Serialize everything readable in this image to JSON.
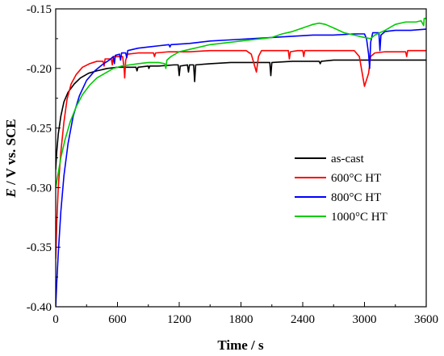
{
  "chart_data": {
    "type": "line",
    "xlabel": "Time / s",
    "ylabel_italic": "E",
    "ylabel_rest": " / V vs. SCE",
    "xlim": [
      0,
      3600
    ],
    "ylim": [
      -0.4,
      -0.15
    ],
    "xticks": [
      0,
      600,
      1200,
      1800,
      2400,
      3000,
      3600
    ],
    "xtick_labels": [
      "0",
      "600",
      "1200",
      "1800",
      "2400",
      "3000",
      "3600"
    ],
    "yticks": [
      -0.4,
      -0.35,
      -0.3,
      -0.25,
      -0.2,
      -0.15
    ],
    "ytick_labels": [
      "-0.40",
      "-0.35",
      "-0.30",
      "-0.25",
      "-0.20",
      "-0.15"
    ],
    "grid": false,
    "legend_position": "center-right",
    "series": [
      {
        "name": "as-cast",
        "color": "#000000",
        "points": [
          [
            0,
            -0.285
          ],
          [
            10,
            -0.27
          ],
          [
            25,
            -0.255
          ],
          [
            50,
            -0.24
          ],
          [
            80,
            -0.228
          ],
          [
            120,
            -0.22
          ],
          [
            180,
            -0.213
          ],
          [
            240,
            -0.208
          ],
          [
            320,
            -0.204
          ],
          [
            400,
            -0.202
          ],
          [
            500,
            -0.2
          ],
          [
            600,
            -0.199
          ],
          [
            700,
            -0.199
          ],
          [
            780,
            -0.199
          ],
          [
            790,
            -0.202
          ],
          [
            800,
            -0.199
          ],
          [
            900,
            -0.198
          ],
          [
            905,
            -0.2
          ],
          [
            915,
            -0.198
          ],
          [
            1000,
            -0.198
          ],
          [
            1150,
            -0.197
          ],
          [
            1190,
            -0.197
          ],
          [
            1200,
            -0.206
          ],
          [
            1210,
            -0.198
          ],
          [
            1280,
            -0.197
          ],
          [
            1290,
            -0.203
          ],
          [
            1300,
            -0.197
          ],
          [
            1340,
            -0.197
          ],
          [
            1350,
            -0.211
          ],
          [
            1360,
            -0.197
          ],
          [
            1500,
            -0.196
          ],
          [
            1700,
            -0.195
          ],
          [
            1900,
            -0.195
          ],
          [
            2080,
            -0.195
          ],
          [
            2090,
            -0.206
          ],
          [
            2100,
            -0.195
          ],
          [
            2300,
            -0.194
          ],
          [
            2560,
            -0.194
          ],
          [
            2570,
            -0.196
          ],
          [
            2580,
            -0.194
          ],
          [
            2700,
            -0.193
          ],
          [
            3000,
            -0.193
          ],
          [
            3300,
            -0.193
          ],
          [
            3600,
            -0.193
          ]
        ]
      },
      {
        "name": "600°C HT",
        "color": "#ff0000",
        "points": [
          [
            0,
            -0.36
          ],
          [
            10,
            -0.33
          ],
          [
            25,
            -0.3
          ],
          [
            50,
            -0.27
          ],
          [
            80,
            -0.245
          ],
          [
            110,
            -0.226
          ],
          [
            150,
            -0.213
          ],
          [
            200,
            -0.205
          ],
          [
            260,
            -0.199
          ],
          [
            330,
            -0.196
          ],
          [
            400,
            -0.194
          ],
          [
            460,
            -0.194
          ],
          [
            470,
            -0.198
          ],
          [
            480,
            -0.192
          ],
          [
            540,
            -0.192
          ],
          [
            550,
            -0.197
          ],
          [
            560,
            -0.19
          ],
          [
            600,
            -0.19
          ],
          [
            650,
            -0.19
          ],
          [
            665,
            -0.2
          ],
          [
            670,
            -0.208
          ],
          [
            680,
            -0.193
          ],
          [
            700,
            -0.188
          ],
          [
            800,
            -0.187
          ],
          [
            900,
            -0.187
          ],
          [
            950,
            -0.187
          ],
          [
            960,
            -0.19
          ],
          [
            970,
            -0.187
          ],
          [
            1100,
            -0.186
          ],
          [
            1300,
            -0.186
          ],
          [
            1500,
            -0.185
          ],
          [
            1700,
            -0.185
          ],
          [
            1850,
            -0.185
          ],
          [
            1900,
            -0.188
          ],
          [
            1930,
            -0.197
          ],
          [
            1950,
            -0.203
          ],
          [
            1970,
            -0.19
          ],
          [
            2000,
            -0.185
          ],
          [
            2200,
            -0.185
          ],
          [
            2260,
            -0.185
          ],
          [
            2270,
            -0.192
          ],
          [
            2280,
            -0.186
          ],
          [
            2350,
            -0.185
          ],
          [
            2400,
            -0.185
          ],
          [
            2410,
            -0.19
          ],
          [
            2420,
            -0.185
          ],
          [
            2600,
            -0.185
          ],
          [
            2700,
            -0.185
          ],
          [
            2900,
            -0.185
          ],
          [
            2950,
            -0.19
          ],
          [
            2980,
            -0.205
          ],
          [
            3000,
            -0.215
          ],
          [
            3040,
            -0.204
          ],
          [
            3060,
            -0.19
          ],
          [
            3100,
            -0.187
          ],
          [
            3200,
            -0.186
          ],
          [
            3300,
            -0.186
          ],
          [
            3400,
            -0.186
          ],
          [
            3410,
            -0.19
          ],
          [
            3420,
            -0.185
          ],
          [
            3500,
            -0.185
          ],
          [
            3600,
            -0.185
          ]
        ]
      },
      {
        "name": "800°C HT",
        "color": "#0000ff",
        "points": [
          [
            0,
            -0.4
          ],
          [
            10,
            -0.38
          ],
          [
            25,
            -0.355
          ],
          [
            50,
            -0.32
          ],
          [
            80,
            -0.29
          ],
          [
            120,
            -0.263
          ],
          [
            170,
            -0.24
          ],
          [
            230,
            -0.223
          ],
          [
            300,
            -0.21
          ],
          [
            380,
            -0.202
          ],
          [
            450,
            -0.197
          ],
          [
            520,
            -0.193
          ],
          [
            560,
            -0.19
          ],
          [
            570,
            -0.196
          ],
          [
            580,
            -0.189
          ],
          [
            620,
            -0.188
          ],
          [
            630,
            -0.193
          ],
          [
            640,
            -0.187
          ],
          [
            680,
            -0.187
          ],
          [
            690,
            -0.191
          ],
          [
            700,
            -0.185
          ],
          [
            800,
            -0.183
          ],
          [
            900,
            -0.182
          ],
          [
            1000,
            -0.181
          ],
          [
            1100,
            -0.18
          ],
          [
            1110,
            -0.182
          ],
          [
            1120,
            -0.18
          ],
          [
            1300,
            -0.179
          ],
          [
            1500,
            -0.177
          ],
          [
            1700,
            -0.176
          ],
          [
            1900,
            -0.175
          ],
          [
            2100,
            -0.174
          ],
          [
            2300,
            -0.173
          ],
          [
            2500,
            -0.172
          ],
          [
            2700,
            -0.172
          ],
          [
            2900,
            -0.171
          ],
          [
            3000,
            -0.171
          ],
          [
            3020,
            -0.175
          ],
          [
            3040,
            -0.188
          ],
          [
            3050,
            -0.2
          ],
          [
            3060,
            -0.178
          ],
          [
            3080,
            -0.17
          ],
          [
            3140,
            -0.17
          ],
          [
            3150,
            -0.185
          ],
          [
            3160,
            -0.172
          ],
          [
            3200,
            -0.169
          ],
          [
            3300,
            -0.168
          ],
          [
            3450,
            -0.168
          ],
          [
            3600,
            -0.167
          ]
        ]
      },
      {
        "name": "1000°C HT",
        "color": "#00cc00",
        "points": [
          [
            0,
            -0.3
          ],
          [
            20,
            -0.29
          ],
          [
            50,
            -0.275
          ],
          [
            90,
            -0.26
          ],
          [
            140,
            -0.245
          ],
          [
            200,
            -0.232
          ],
          [
            260,
            -0.222
          ],
          [
            330,
            -0.214
          ],
          [
            400,
            -0.208
          ],
          [
            480,
            -0.204
          ],
          [
            560,
            -0.2
          ],
          [
            640,
            -0.198
          ],
          [
            720,
            -0.197
          ],
          [
            800,
            -0.196
          ],
          [
            900,
            -0.195
          ],
          [
            1000,
            -0.195
          ],
          [
            1060,
            -0.196
          ],
          [
            1070,
            -0.2
          ],
          [
            1080,
            -0.193
          ],
          [
            1120,
            -0.19
          ],
          [
            1160,
            -0.188
          ],
          [
            1200,
            -0.186
          ],
          [
            1300,
            -0.184
          ],
          [
            1400,
            -0.182
          ],
          [
            1500,
            -0.18
          ],
          [
            1600,
            -0.179
          ],
          [
            1700,
            -0.178
          ],
          [
            1800,
            -0.177
          ],
          [
            1900,
            -0.176
          ],
          [
            2000,
            -0.175
          ],
          [
            2100,
            -0.174
          ],
          [
            2200,
            -0.171
          ],
          [
            2300,
            -0.169
          ],
          [
            2400,
            -0.166
          ],
          [
            2500,
            -0.163
          ],
          [
            2560,
            -0.162
          ],
          [
            2620,
            -0.163
          ],
          [
            2700,
            -0.166
          ],
          [
            2800,
            -0.17
          ],
          [
            2900,
            -0.172
          ],
          [
            3000,
            -0.174
          ],
          [
            3060,
            -0.175
          ],
          [
            3100,
            -0.172
          ],
          [
            3200,
            -0.168
          ],
          [
            3300,
            -0.163
          ],
          [
            3400,
            -0.161
          ],
          [
            3500,
            -0.161
          ],
          [
            3550,
            -0.16
          ],
          [
            3575,
            -0.164
          ],
          [
            3580,
            -0.158
          ],
          [
            3600,
            -0.158
          ]
        ]
      }
    ]
  }
}
